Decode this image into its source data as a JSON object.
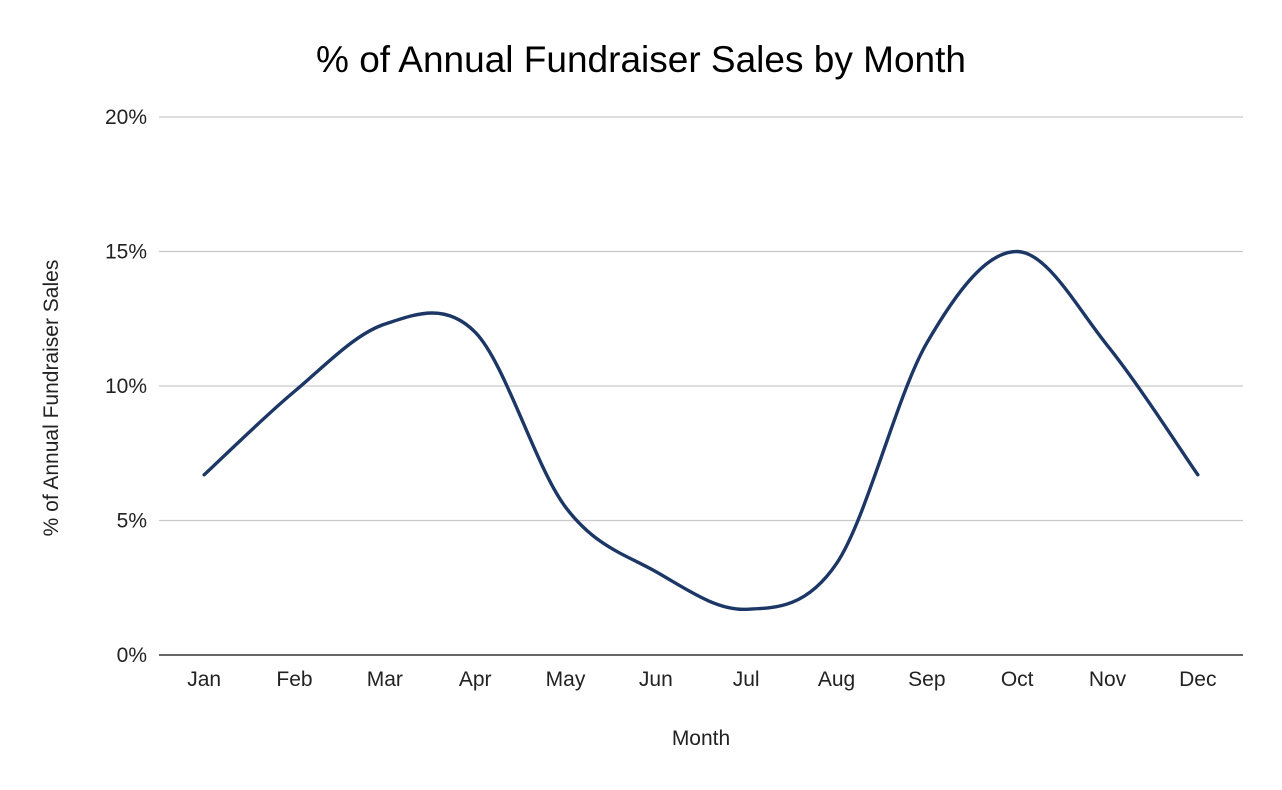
{
  "colors": {
    "series": "#1c3765",
    "grid": "#c9c9c9",
    "baseline": "#333333",
    "background": "#ffffff"
  },
  "chart_data": {
    "type": "line",
    "title": "% of Annual Fundraiser Sales by Month",
    "xlabel": "Month",
    "ylabel": "% of Annual Fundraiser Sales",
    "categories": [
      "Jan",
      "Feb",
      "Mar",
      "Apr",
      "May",
      "Jun",
      "Jul",
      "Aug",
      "Sep",
      "Oct",
      "Nov",
      "Dec"
    ],
    "series": [
      {
        "values": [
          6.7,
          9.8,
          12.3,
          12.0,
          5.5,
          3.1,
          1.7,
          3.4,
          11.6,
          15.0,
          11.5,
          6.7
        ],
        "smooth": true
      }
    ],
    "ylim": [
      0,
      20
    ],
    "yticks": [
      0,
      5,
      10,
      15,
      20
    ],
    "ytick_labels": [
      "0%",
      "5%",
      "10%",
      "15%",
      "20%"
    ],
    "grid": true,
    "legend": "none"
  }
}
